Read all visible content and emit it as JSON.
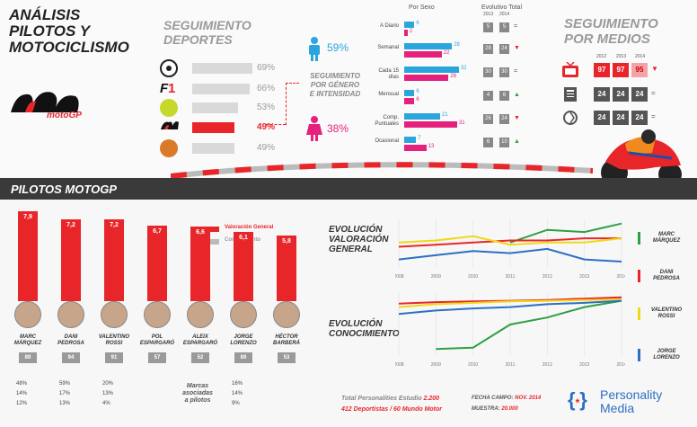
{
  "title": {
    "line1": "ANÁLISIS",
    "line2": "PILOTOS Y",
    "line3": "MOTOCICLISMO"
  },
  "logo_text": "motoGP",
  "sports": {
    "title_line1": "SEGUIMIENTO",
    "title_line2": "DEPORTES",
    "items": [
      {
        "icon": "soccer-ball-icon",
        "value": 69,
        "label": "69%"
      },
      {
        "icon": "f1-icon",
        "value": 66,
        "label": "66%"
      },
      {
        "icon": "tennis-ball-icon",
        "value": 53,
        "label": "53%"
      },
      {
        "icon": "motogp-icon",
        "value": 49,
        "label": "49%",
        "highlight": true
      },
      {
        "icon": "basketball-icon",
        "value": 49,
        "label": "49%"
      }
    ]
  },
  "gender": {
    "title_line1": "SEGUIMIENTO",
    "title_line2": "POR GÉNERO",
    "title_line3": "E INTENSIDAD",
    "male_pct": "59%",
    "female_pct": "38%"
  },
  "frequency": {
    "header_sex": "Por Sexo",
    "header_evo": "Evolutivo Total",
    "years": [
      "2013",
      "2014"
    ],
    "rows": [
      {
        "label": "A Diario",
        "male": 6,
        "female": 2,
        "evo": [
          "5",
          "5"
        ],
        "trend": "="
      },
      {
        "label": "Semanal",
        "male": 28,
        "female": 22,
        "evo": [
          "28",
          "24"
        ],
        "trend": "▼"
      },
      {
        "label": "Cada 15 días",
        "male": 32,
        "female": 26,
        "evo": [
          "30",
          "30"
        ],
        "trend": "="
      },
      {
        "label": "Mensual",
        "male": 6,
        "female": 6,
        "evo": [
          "4",
          "6"
        ],
        "trend": "▲"
      },
      {
        "label": "Comp. Puntuales",
        "male": 21,
        "female": 31,
        "evo": [
          "26",
          "24"
        ],
        "trend": "▼"
      },
      {
        "label": "Ocasional",
        "male": 7,
        "female": 13,
        "evo": [
          "6",
          "10"
        ],
        "trend": "▲"
      }
    ]
  },
  "media": {
    "title_line1": "SEGUIMIENTO",
    "title_line2": "POR MEDIOS",
    "years": [
      "2012",
      "2013",
      "2014"
    ],
    "rows": [
      {
        "icon": "tv-icon",
        "values": [
          "97",
          "97",
          "95"
        ],
        "trend": "▼"
      },
      {
        "icon": "newspaper-icon",
        "values": [
          "24",
          "24",
          "24"
        ],
        "trend": "="
      },
      {
        "icon": "internet-icon",
        "values": [
          "24",
          "24",
          "24"
        ],
        "trend": "="
      }
    ]
  },
  "pilots_title": "PILOTOS MOTOGP",
  "pilot_legend": {
    "valoracion": "Valoración General",
    "conocimiento": "Conocimiento"
  },
  "pilots": [
    {
      "name1": "MARC",
      "name2": "MÁRQUEZ",
      "score": "7,9",
      "value": 7.9,
      "know": "89",
      "brands": [
        "48%",
        "14%",
        "12%"
      ]
    },
    {
      "name1": "DANI",
      "name2": "PEDROSA",
      "score": "7,2",
      "value": 7.2,
      "know": "94",
      "brands": [
        "59%",
        "17%",
        "13%"
      ]
    },
    {
      "name1": "VALENTINO",
      "name2": "ROSSI",
      "score": "7,2",
      "value": 7.2,
      "know": "91",
      "brands": [
        "20%",
        "13%",
        "4%"
      ]
    },
    {
      "name1": "POL",
      "name2": "ESPARGARÓ",
      "score": "6,7",
      "value": 6.7,
      "know": "57",
      "brands": []
    },
    {
      "name1": "ALEIX",
      "name2": "ESPARGARÓ",
      "score": "6,6",
      "value": 6.6,
      "know": "52",
      "brands": []
    },
    {
      "name1": "JORGE",
      "name2": "LORENZO",
      "score": "6,1",
      "value": 6.1,
      "know": "89",
      "brands": [
        "16%",
        "14%",
        "9%"
      ]
    },
    {
      "name1": "HÉCTOR",
      "name2": "BARBERÁ",
      "score": "5,8",
      "value": 5.8,
      "know": "53",
      "brands": []
    }
  ],
  "brands_label": {
    "l1": "Marcas",
    "l2": "asociadas",
    "l3": "a pilotos"
  },
  "charts": {
    "val_title": {
      "l1": "EVOLUCIÓN",
      "l2": "VALORACIÓN",
      "l3": "GENERAL"
    },
    "con_title": {
      "l1": "EVOLUCIÓN",
      "l2": "CONOCIMIENTO"
    },
    "x_labels": [
      "2008",
      "2009",
      "2010",
      "2011",
      "2012",
      "2013",
      "2014"
    ],
    "colors": {
      "marquez": "#2ea043",
      "pedrosa": "#e8262a",
      "rossi": "#f0d817",
      "lorenzo": "#2d6fc4"
    }
  },
  "chart_data": [
    {
      "type": "line",
      "title": "EVOLUCIÓN VALORACIÓN GENERAL",
      "x": [
        "2008",
        "2009",
        "2010",
        "2011",
        "2012",
        "2013",
        "2014"
      ],
      "series": [
        {
          "name": "MARC MÁRQUEZ",
          "values": [
            null,
            null,
            null,
            7.0,
            7.6,
            7.5,
            7.9
          ]
        },
        {
          "name": "DANI PEDROSA",
          "values": [
            6.8,
            6.9,
            7.0,
            7.1,
            7.1,
            7.2,
            7.2
          ]
        },
        {
          "name": "VALENTINO ROSSI",
          "values": [
            7.0,
            7.1,
            7.3,
            6.9,
            7.0,
            7.0,
            7.2
          ]
        },
        {
          "name": "JORGE LORENZO",
          "values": [
            6.2,
            6.4,
            6.6,
            6.5,
            6.7,
            6.2,
            6.1
          ]
        }
      ]
    },
    {
      "type": "line",
      "title": "EVOLUCIÓN CONOCIMIENTO",
      "x": [
        "2008",
        "2009",
        "2010",
        "2011",
        "2012",
        "2013",
        "2014"
      ],
      "series": [
        {
          "name": "MARC MÁRQUEZ",
          "values": [
            null,
            20,
            22,
            55,
            65,
            80,
            89
          ]
        },
        {
          "name": "DANI PEDROSA",
          "values": [
            85,
            87,
            88,
            89,
            90,
            92,
            94
          ]
        },
        {
          "name": "VALENTINO ROSSI",
          "values": [
            80,
            84,
            86,
            88,
            89,
            90,
            91
          ]
        },
        {
          "name": "JORGE LORENZO",
          "values": [
            70,
            75,
            78,
            80,
            84,
            86,
            89
          ]
        }
      ]
    }
  ],
  "legend": [
    {
      "l1": "MARC",
      "l2": "MÁRQUEZ",
      "color": "#2ea043"
    },
    {
      "l1": "DANI",
      "l2": "PEDROSA",
      "color": "#e8262a"
    },
    {
      "l1": "VALENTINO",
      "l2": "ROSSI",
      "color": "#f0d817"
    },
    {
      "l1": "JORGE",
      "l2": "LORENZO",
      "color": "#2d6fc4"
    }
  ],
  "footer": {
    "total_label": "Total Personalities Estudio",
    "total_value": "2.200",
    "dep_line": "412 Deportistas / 60 Mundo Motor",
    "fecha_label": "FECHA CAMPO:",
    "fecha_value": "NOV. 2014",
    "muestra_label": "MUESTRA:",
    "muestra_value": "20.000",
    "brand1": "Personality",
    "brand2": "Media"
  }
}
